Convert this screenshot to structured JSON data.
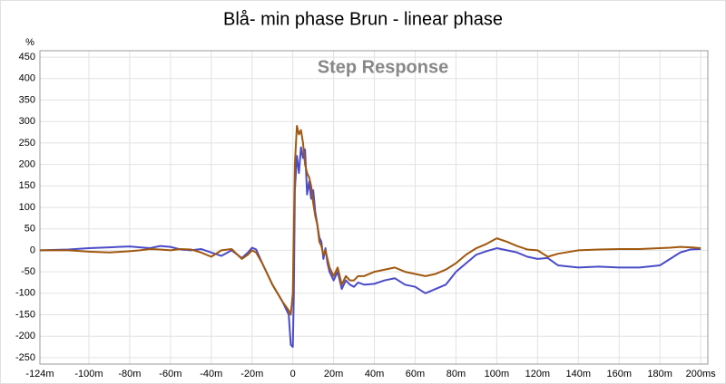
{
  "chart_data": {
    "type": "line",
    "title": "Blå- min phase Brun - linear phase",
    "subtitle": "Step Response",
    "y_label": "%",
    "x": [
      -124,
      -110,
      -100,
      -90,
      -80,
      -75,
      -70,
      -65,
      -60,
      -55,
      -50,
      -45,
      -40,
      -35,
      -30,
      -25,
      -22,
      -20,
      -18,
      -15,
      -10,
      -5,
      -2,
      -1,
      0,
      0.5,
      1,
      2,
      3,
      4,
      5,
      6,
      7,
      8,
      9,
      10,
      11,
      12,
      13,
      14,
      15,
      16,
      17,
      18,
      20,
      22,
      24,
      26,
      28,
      30,
      32,
      35,
      40,
      45,
      50,
      55,
      60,
      65,
      70,
      75,
      80,
      85,
      90,
      95,
      100,
      105,
      110,
      115,
      120,
      125,
      130,
      140,
      150,
      160,
      170,
      180,
      185,
      190,
      195,
      200
    ],
    "series": [
      {
        "color": "#4b4bc8",
        "values": [
          0,
          2,
          5,
          7,
          9,
          7,
          5,
          10,
          8,
          2,
          0,
          3,
          -5,
          -13,
          0,
          -18,
          -5,
          6,
          2,
          -30,
          -80,
          -120,
          -150,
          -220,
          -225,
          -100,
          140,
          220,
          180,
          240,
          215,
          235,
          130,
          160,
          120,
          140,
          90,
          60,
          30,
          20,
          -20,
          5,
          -30,
          -50,
          -70,
          -50,
          -90,
          -70,
          -80,
          -85,
          -75,
          -80,
          -78,
          -70,
          -65,
          -80,
          -85,
          -100,
          -90,
          -80,
          -50,
          -30,
          -10,
          -2,
          5,
          0,
          -5,
          -15,
          -20,
          -18,
          -35,
          -40,
          -38,
          -40,
          -40,
          -35,
          -20,
          -5,
          2,
          3
        ]
      },
      {
        "color": "#a0580f",
        "values": [
          0,
          0,
          -3,
          -5,
          -2,
          0,
          3,
          2,
          0,
          3,
          2,
          -5,
          -15,
          0,
          3,
          -20,
          -10,
          0,
          -5,
          -30,
          -80,
          -120,
          -140,
          -150,
          -100,
          50,
          200,
          290,
          270,
          280,
          250,
          200,
          180,
          170,
          150,
          110,
          80,
          60,
          20,
          10,
          -10,
          0,
          -20,
          -40,
          -60,
          -40,
          -80,
          -60,
          -70,
          -70,
          -60,
          -60,
          -50,
          -45,
          -40,
          -50,
          -55,
          -60,
          -55,
          -45,
          -30,
          -10,
          5,
          15,
          28,
          20,
          10,
          2,
          0,
          -15,
          -8,
          0,
          2,
          3,
          3,
          5,
          6,
          8,
          7,
          5
        ]
      }
    ],
    "xlim": [
      -124,
      203.5
    ],
    "xticks": [
      {
        "value": -124,
        "label": "-124m"
      },
      {
        "value": -100,
        "label": "-100m"
      },
      {
        "value": -80,
        "label": "-80m"
      },
      {
        "value": -60,
        "label": "-60m"
      },
      {
        "value": -40,
        "label": "-40m"
      },
      {
        "value": -20,
        "label": "-20m"
      },
      0,
      {
        "value": 20,
        "label": "20m"
      },
      {
        "value": 40,
        "label": "40m"
      },
      {
        "value": 60,
        "label": "60m"
      },
      {
        "value": 80,
        "label": "80m"
      },
      {
        "value": 100,
        "label": "100m"
      },
      {
        "value": 120,
        "label": "120m"
      },
      {
        "value": 140,
        "label": "140m"
      },
      {
        "value": 160,
        "label": "160m"
      },
      {
        "value": 180,
        "label": "180m"
      },
      {
        "value": 200,
        "label": "200ms"
      }
    ],
    "ylim": [
      -265,
      465
    ],
    "yticks": [
      -250,
      -200,
      -150,
      -100,
      -50,
      0,
      50,
      100,
      150,
      200,
      250,
      300,
      350,
      400,
      450
    ],
    "grid": true
  }
}
